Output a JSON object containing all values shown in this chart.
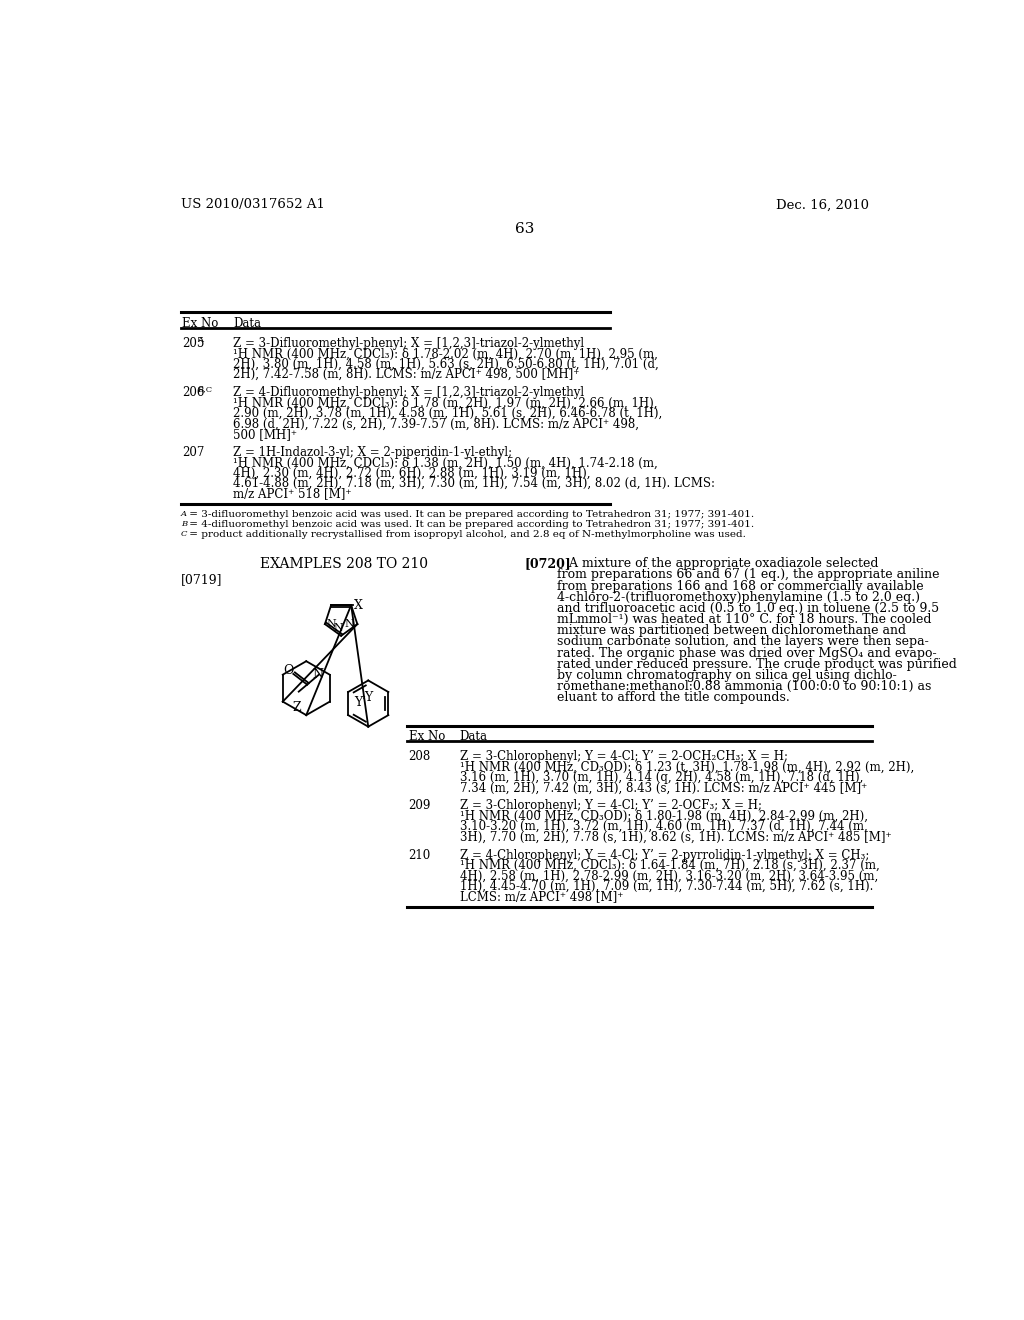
{
  "bg_color": "#ffffff",
  "header_left": "US 2010/0317652 A1",
  "header_right": "Dec. 16, 2010",
  "page_number": "63",
  "table1": {
    "rows": [
      {
        "ex": "205",
        "ex_sup": "A",
        "data_lines": [
          "Z = 3-Difluoromethyl-phenyl; X = [1,2,3]-triazol-2-ylmethyl",
          "¹H NMR (400 MHz, CDCl₃): δ 1.78-2.02 (m, 4H), 2.70 (m, 1H), 2.95 (m,",
          "2H), 3.80 (m, 1H), 4.58 (m, 1H), 5.63 (s, 2H), 6.50-6.80 (t, 1H), 7.01 (d,",
          "2H), 7.42-7.58 (m, 8H). LCMS: m/z APCI⁺ 498, 500 [MH]⁺"
        ]
      },
      {
        "ex": "206",
        "ex_sup": "B,C",
        "data_lines": [
          "Z = 4-Difluoromethyl-phenyl; X = [1,2,3]-triazol-2-ylmethyl",
          "¹H NMR (400 MHz, CDCl₃): δ 1.78 (m, 2H), 1.97 (m, 2H), 2.66 (m, 1H),",
          "2.90 (m, 2H), 3.78 (m, 1H), 4.58 (m, 1H), 5.61 (s, 2H), 6.46-6.78 (t, 1H),",
          "6.98 (d, 2H), 7.22 (s, 2H), 7.39-7.57 (m, 8H). LCMS: m/z APCI⁺ 498,",
          "500 [MH]⁺"
        ]
      },
      {
        "ex": "207",
        "ex_sup": "",
        "data_lines": [
          "Z = 1H-Indazol-3-yl; X = 2-piperidin-1-yl-ethyl;",
          "¹H NMR (400 MHz, CDCl₃): δ 1.38 (m, 2H), 1.50 (m, 4H), 1.74-2.18 (m,",
          "4H), 2.30 (m, 4H), 2.72 (m, 6H), 2.88 (m, 1H), 3.19 (m, 1H),",
          "4.61-4.88 (m, 2H), 7.18 (m, 3H), 7.30 (m, 1H), 7.54 (m, 3H), 8.02 (d, 1H). LCMS:",
          "m/z APCI⁺ 518 [M]⁺"
        ]
      }
    ],
    "footnotes": [
      "A = 3-difluoromethyl benzoic acid was used. It can be prepared according to Tetrahedron 31; 1977; 391-401.",
      "B = 4-difluoromethyl benzoic acid was used. It can be prepared according to Tetrahedron 31; 1977; 391-401.",
      "C = product additionally recrystallised from isopropyl alcohol, and 2.8 eq of N-methylmorpholine was used."
    ],
    "footnote_prefixes": [
      "A",
      "B",
      "C"
    ]
  },
  "section_title": "EXAMPLES 208 TO 210",
  "paragraph_label": "[0719]",
  "paragraph_right_label": "[0720]",
  "paragraph_right_text": [
    "   A mixture of the appropriate oxadiazole selected",
    "from preparations 66 and 67 (1 eq.), the appropriate aniline",
    "from preparations 166 and 168 or commercially available",
    "4-chloro-2-(trifluoromethoxy)phenylamine (1.5 to 2.0 eq.)",
    "and trifluoroacetic acid (0.5 to 1.0 eq.) in toluene (2.5 to 9.5",
    "mLmmol⁻¹) was heated at 110° C. for 18 hours. The cooled",
    "mixture was partitioned between dichloromethane and",
    "sodium carbonate solution, and the layers were then sepa-",
    "rated. The organic phase was dried over MgSO₄ and evapo-",
    "rated under reduced pressure. The crude product was purified",
    "by column chromatography on silica gel using dichlo-",
    "romethane:methanol:0.88 ammonia (100:0:0 to 90:10:1) as",
    "eluant to afford the title compounds."
  ],
  "table2": {
    "rows": [
      {
        "ex": "208",
        "data_lines": [
          "Z = 3-Chlorophenyl; Y = 4-Cl; Y’ = 2-OCH₂CH₃; X = H;",
          "¹H NMR (400 MHz, CD₃OD): δ 1.23 (t, 3H), 1.78-1.98 (m, 4H), 2.92 (m, 2H),",
          "3.16 (m, 1H), 3.70 (m, 1H), 4.14 (q, 2H), 4.58 (m, 1H), 7.18 (d, 1H),",
          "7.34 (m, 2H), 7.42 (m, 3H), 8.43 (s, 1H). LCMS: m/z APCI⁺ 445 [M]⁺"
        ]
      },
      {
        "ex": "209",
        "data_lines": [
          "Z = 3-Chlorophenyl; Y = 4-Cl; Y’ = 2-OCF₃; X = H;",
          "¹H NMR (400 MHz, CD₃OD): δ 1.80-1.98 (m, 4H), 2.84-2.99 (m, 2H),",
          "3.10-3.20 (m, 1H), 3.72 (m, 1H), 4.60 (m, 1H), 7.37 (d, 1H), 7.44 (m,",
          "3H), 7.70 (m, 2H), 7.78 (s, 1H), 8.62 (s, 1H). LCMS: m/z APCI⁺ 485 [M]⁺"
        ]
      },
      {
        "ex": "210",
        "data_lines": [
          "Z = 4-Chlorophenyl; Y = 4-Cl; Y’ = 2-pyrrolidin-1-ylmethyl; X = CH₃;",
          "¹H NMR (400 MHz, CDCl₃): δ 1.64-1.84 (m, 7H), 2.18 (s, 3H), 2.37 (m,",
          "4H), 2.58 (m, 1H), 2.78-2.99 (m, 2H), 3.16-3.20 (m, 2H), 3.64-3.95 (m,",
          "1H), 4.45-4.70 (m, 1H), 7.09 (m, 1H), 7.30-7.44 (m, 5H), 7.62 (s, 1H).",
          "LCMS: m/z APCI⁺ 498 [M]⁺"
        ]
      }
    ]
  }
}
